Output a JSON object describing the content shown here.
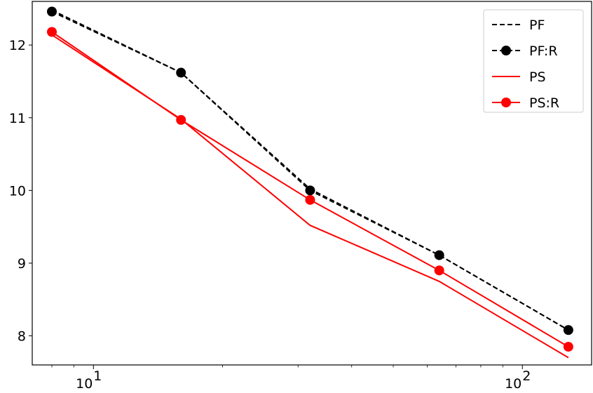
{
  "chart_data": {
    "type": "line",
    "title": "",
    "xlabel": "",
    "ylabel": "",
    "xscale": "log",
    "xlim": [
      7.2,
      145
    ],
    "ylim": [
      7.6,
      12.6
    ],
    "x": [
      8,
      16,
      32,
      64,
      128
    ],
    "x_ticks": [
      {
        "value": 10,
        "base": "10",
        "exp": "1"
      },
      {
        "value": 100,
        "base": "10",
        "exp": "2"
      }
    ],
    "y_ticks": [
      8,
      9,
      10,
      11,
      12
    ],
    "grid": false,
    "legend_position": "top-right",
    "series": [
      {
        "name": "PF",
        "color": "#000000",
        "style": "dashed",
        "marker": "none",
        "values": [
          12.48,
          11.62,
          10.02,
          9.11,
          8.08
        ]
      },
      {
        "name": "PF:R",
        "color": "#000000",
        "style": "dashed",
        "marker": "circle",
        "values": [
          12.46,
          11.62,
          10.0,
          9.11,
          8.08
        ]
      },
      {
        "name": "PS",
        "color": "#ff0000",
        "style": "solid",
        "marker": "none",
        "values": [
          12.14,
          10.98,
          9.52,
          8.75,
          7.7
        ]
      },
      {
        "name": "PS:R",
        "color": "#ff0000",
        "style": "solid",
        "marker": "circle",
        "values": [
          12.18,
          10.97,
          9.87,
          8.9,
          7.85
        ]
      }
    ]
  }
}
